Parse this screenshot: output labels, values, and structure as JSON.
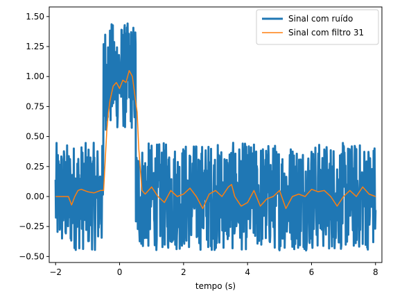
{
  "chart_data": {
    "type": "line",
    "title": "",
    "xlabel": "tempo (s)",
    "ylabel": "",
    "xlim": [
      -2.2,
      8.2
    ],
    "ylim": [
      -0.55,
      1.58
    ],
    "xticks": [
      -2,
      0,
      2,
      4,
      6,
      8
    ],
    "xtick_labels": [
      "−2",
      "0",
      "2",
      "4",
      "6",
      "8"
    ],
    "yticks": [
      -0.5,
      -0.25,
      0.0,
      0.25,
      0.5,
      0.75,
      1.0,
      1.25,
      1.5
    ],
    "ytick_labels": [
      "−0.50",
      "−0.25",
      "0.00",
      "0.25",
      "0.50",
      "0.75",
      "1.00",
      "1.25",
      "1.50"
    ],
    "grid": false,
    "legend_position": "top-right",
    "series": [
      {
        "name": "Sinal com ruído",
        "color": "#1f77b4",
        "line_width": "thick",
        "description": "noisy rectangular pulse: baseline 0 with ±0.45 noise, pulse amplitude 1 between t=-0.5 and t=0.5",
        "pulse_start": -0.5,
        "pulse_end": 0.5,
        "pulse_level": 1.0,
        "noise_amplitude": 0.45,
        "x_start": -2.0,
        "x_end": 8.0
      },
      {
        "name": "Sinal com filtro 31",
        "color": "#ff7f0e",
        "line_width": "thin",
        "x": [
          -2.0,
          -1.6,
          -1.5,
          -1.4,
          -1.3,
          -1.2,
          -1.0,
          -0.8,
          -0.6,
          -0.5,
          -0.45,
          -0.4,
          -0.35,
          -0.3,
          -0.2,
          -0.1,
          0.0,
          0.1,
          0.2,
          0.3,
          0.4,
          0.5,
          0.55,
          0.6,
          0.7,
          0.8,
          1.0,
          1.2,
          1.4,
          1.6,
          1.8,
          2.0,
          2.2,
          2.4,
          2.6,
          2.8,
          3.0,
          3.2,
          3.4,
          3.5,
          3.6,
          3.8,
          4.0,
          4.2,
          4.4,
          4.6,
          4.8,
          5.0,
          5.2,
          5.4,
          5.6,
          5.8,
          6.0,
          6.2,
          6.4,
          6.6,
          6.8,
          7.0,
          7.2,
          7.4,
          7.6,
          7.8,
          8.0
        ],
        "y": [
          0.0,
          0.0,
          -0.07,
          0.0,
          0.05,
          0.06,
          0.04,
          0.03,
          0.05,
          0.05,
          0.3,
          0.55,
          0.7,
          0.8,
          0.92,
          0.95,
          0.9,
          0.97,
          0.95,
          1.05,
          1.0,
          0.8,
          0.7,
          0.4,
          0.05,
          0.02,
          0.08,
          0.0,
          -0.05,
          0.05,
          0.0,
          0.02,
          0.07,
          0.0,
          -0.1,
          0.02,
          0.05,
          0.0,
          0.08,
          0.1,
          0.0,
          -0.08,
          -0.05,
          0.05,
          -0.08,
          -0.02,
          0.0,
          0.05,
          -0.1,
          0.0,
          0.02,
          0.0,
          0.06,
          0.04,
          0.05,
          0.0,
          -0.08,
          0.0,
          0.05,
          0.0,
          0.08,
          0.02,
          0.0
        ]
      }
    ]
  }
}
